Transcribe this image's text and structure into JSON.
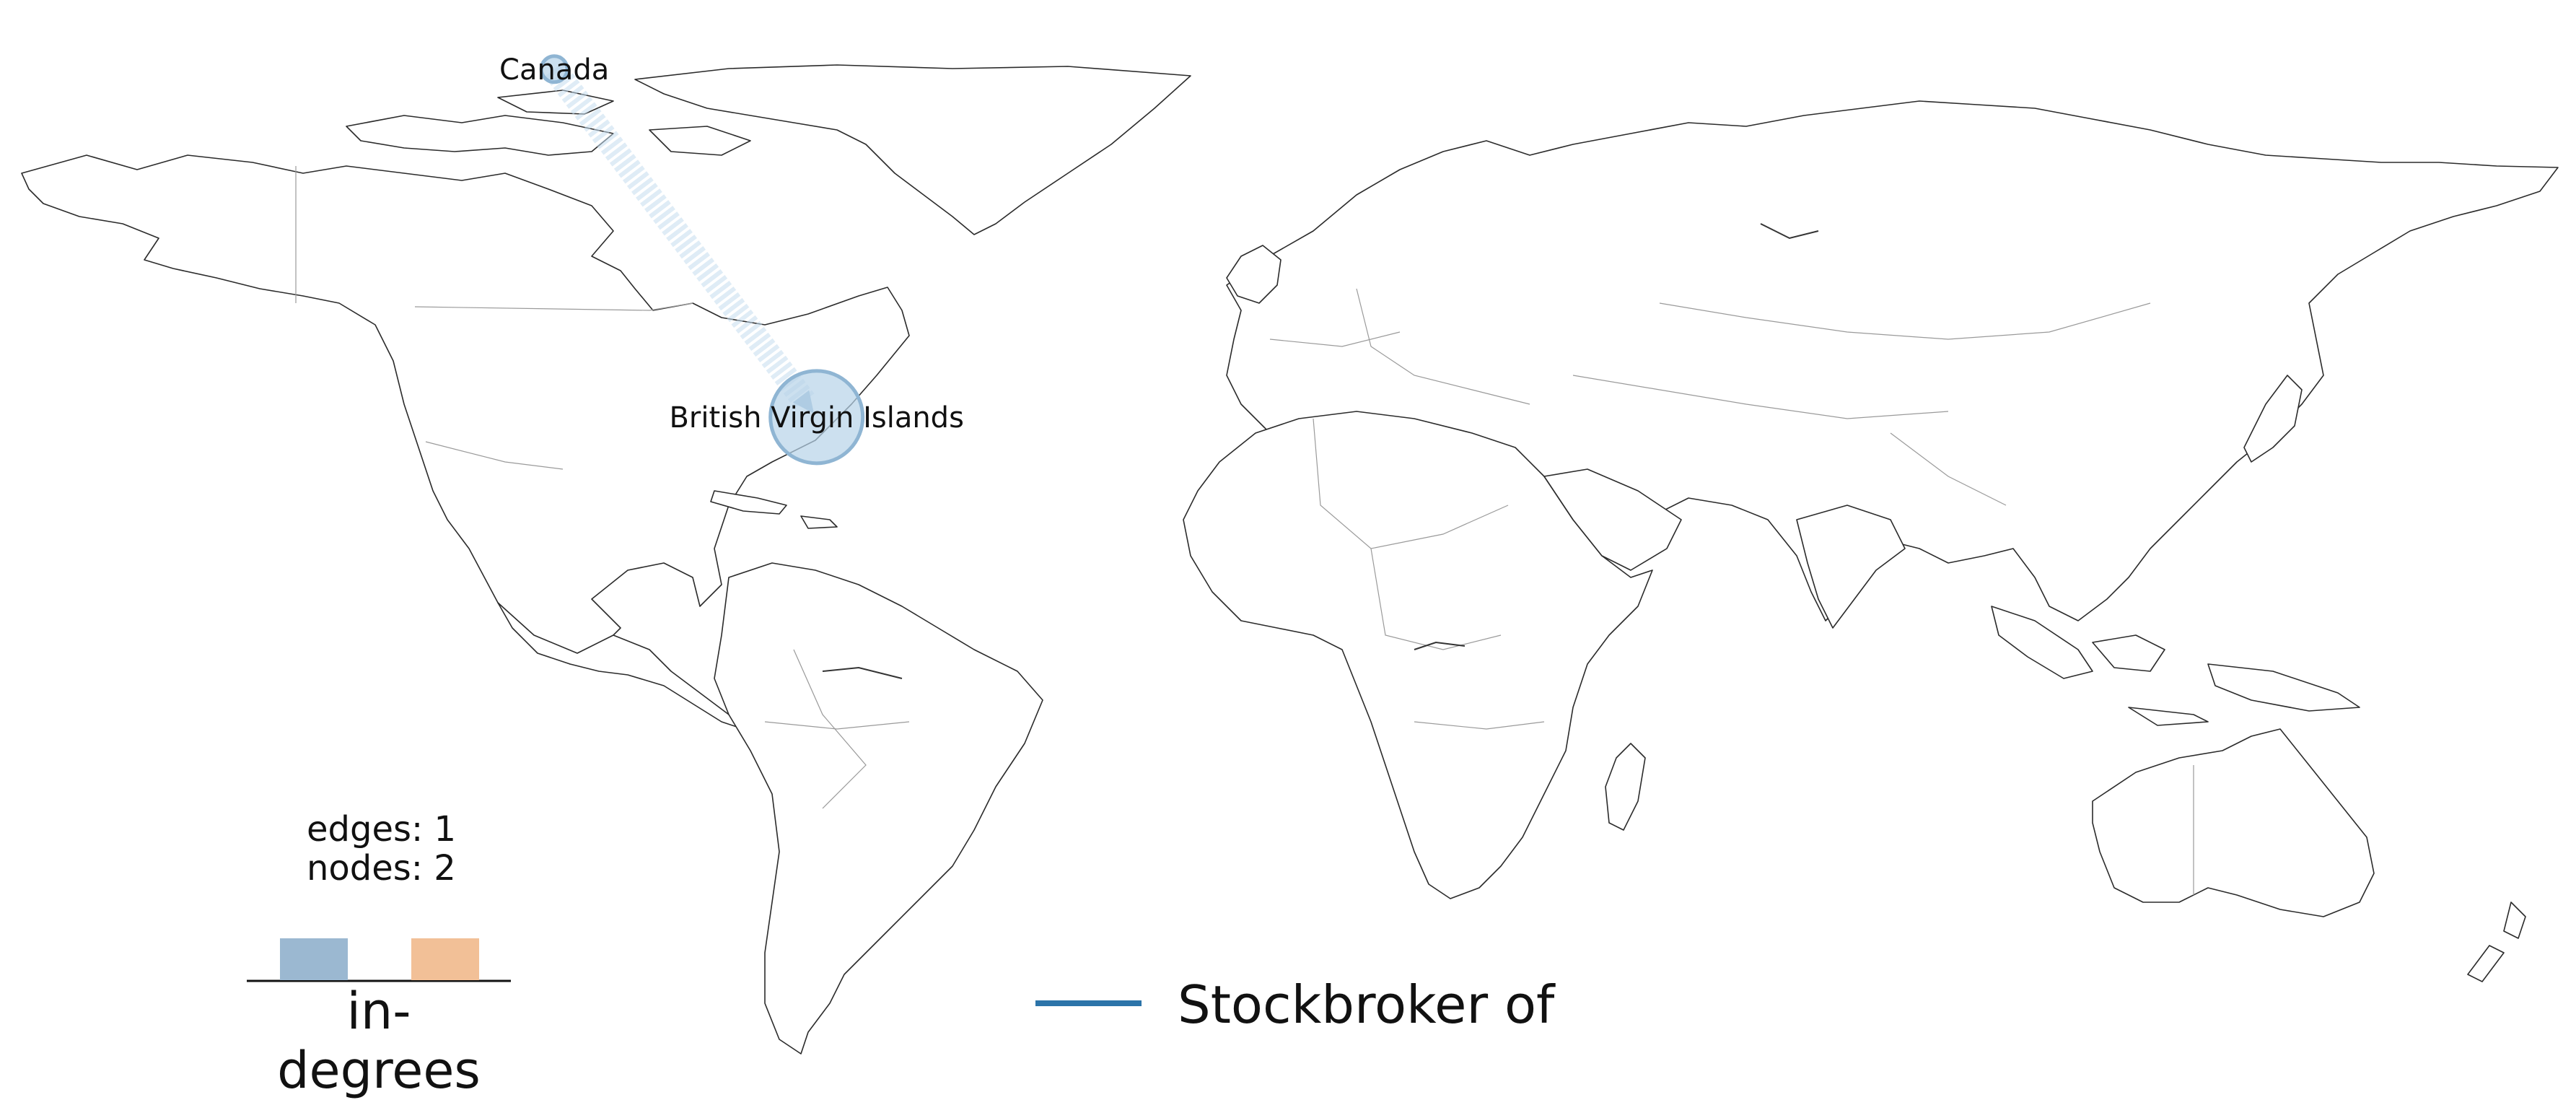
{
  "nodes": [
    {
      "name": "Canada",
      "lon": -102.0,
      "lat": 62.0,
      "in_degree": 0,
      "out_degree": 1
    },
    {
      "name": "British Virgin Islands",
      "lon": -64.6,
      "lat": 18.4,
      "in_degree": 1,
      "out_degree": 0
    }
  ],
  "edges": [
    {
      "source": "Canada",
      "target": "British Virgin Islands",
      "relation": "Stockbroker of"
    }
  ],
  "stats": {
    "edges_label": "edges: 1",
    "nodes_label": "nodes: 2"
  },
  "legend": {
    "title": "in-degrees",
    "bar_colors": [
      "#9bb8d1",
      "#f2c097"
    ],
    "relation_label": "Stockbroker of",
    "relation_color": "#2c74a9"
  },
  "colors": {
    "node_fill": "#b7d3e8",
    "node_stroke": "#8fb5d3",
    "edge_color": "#c4dcef",
    "land_stroke": "#2b2b2b",
    "border_stroke": "#9a9a9a"
  }
}
